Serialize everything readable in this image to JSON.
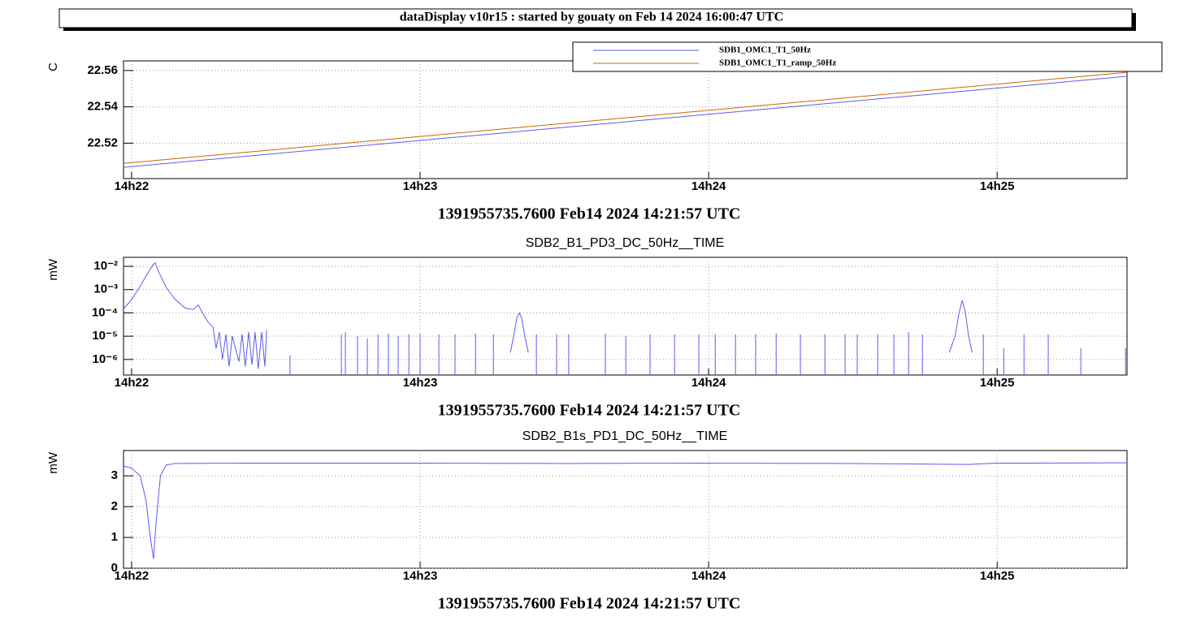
{
  "header": {
    "title": "dataDisplay v10r15 : started by gouaty on Feb 14 2024 16:00:47 UTC"
  },
  "chart_data": [
    {
      "type": "line",
      "ylabel": "C",
      "xlabel": "1391955735.7600 Feb14 2024 14:21:57 UTC",
      "x": [
        21.972,
        22.5,
        23,
        23.5,
        24,
        24.5,
        25,
        25.45
      ],
      "series": [
        {
          "name": "SDB1_OMC1_T1_50Hz",
          "color": "#5b5bf0",
          "values": [
            22.5067,
            22.5143,
            22.5215,
            22.5287,
            22.5359,
            22.5431,
            22.5503,
            22.5568
          ]
        },
        {
          "name": "SDB1_OMC1_T1_ramp_50Hz",
          "color": "#cc6600",
          "values": [
            22.5089,
            22.5165,
            22.5237,
            22.5309,
            22.5381,
            22.5453,
            22.5525,
            22.559
          ]
        }
      ],
      "xlim": [
        21.972,
        25.45
      ],
      "ylim": [
        22.5005,
        22.5653
      ],
      "xticks": [
        {
          "value": 22,
          "label": "14h22"
        },
        {
          "value": 23,
          "label": "14h23"
        },
        {
          "value": 24,
          "label": "14h24"
        },
        {
          "value": 25,
          "label": "14h25"
        }
      ],
      "yticks": [
        22.52,
        22.54,
        22.56
      ],
      "grid": true,
      "legend": "top-right"
    },
    {
      "type": "line",
      "title": "SDB2_B1_PD3_DC_50Hz__TIME",
      "ylabel": "mW",
      "xlabel": "1391955735.7600 Feb14 2024 14:21:57 UTC",
      "x": [
        21.972,
        21.994,
        22.023,
        22.051,
        22.073,
        22.082,
        22.096,
        22.121,
        22.149,
        22.186,
        22.214,
        22.231,
        22.248,
        22.265,
        22.282,
        22.293,
        22.304,
        22.315,
        22.327,
        22.338,
        22.349,
        22.372,
        22.383,
        22.394,
        22.406,
        22.417,
        22.428,
        22.439,
        22.451,
        22.462,
        22.468,
        null,
        22.549,
        22.549,
        null,
        22.727,
        22.727,
        null,
        22.741,
        22.741,
        null,
        22.783,
        22.783,
        null,
        22.817,
        22.817,
        null,
        22.854,
        22.854,
        null,
        22.89,
        22.89,
        null,
        22.924,
        22.924,
        null,
        22.961,
        22.961,
        null,
        23.0,
        23.0,
        null,
        23.065,
        23.065,
        null,
        23.121,
        23.121,
        null,
        23.192,
        23.192,
        null,
        23.254,
        23.254,
        null,
        23.313,
        23.324,
        23.335,
        23.344,
        23.352,
        23.363,
        23.375,
        null,
        23.403,
        23.403,
        null,
        23.473,
        23.473,
        null,
        23.515,
        23.515,
        null,
        23.642,
        23.642,
        null,
        23.713,
        23.713,
        null,
        23.797,
        23.797,
        null,
        23.882,
        23.882,
        null,
        23.966,
        23.966,
        null,
        24.023,
        24.023,
        null,
        24.093,
        24.093,
        null,
        24.163,
        24.163,
        null,
        24.234,
        24.234,
        null,
        24.318,
        24.318,
        null,
        24.403,
        24.403,
        null,
        24.473,
        24.473,
        null,
        24.515,
        24.515,
        null,
        24.586,
        24.586,
        null,
        24.642,
        24.642,
        null,
        24.693,
        24.693,
        null,
        24.741,
        24.741,
        null,
        24.834,
        24.854,
        24.868,
        24.879,
        24.89,
        24.901,
        24.913,
        null,
        24.952,
        24.952,
        null,
        25.023,
        25.023,
        null,
        25.093,
        25.093,
        null,
        25.177,
        25.177,
        null,
        25.29,
        25.29,
        null,
        25.445,
        25.445
      ],
      "series": [
        {
          "name": "SDB2_B1_PD3_DC_50Hz__TIME",
          "color": "#5b5bf0",
          "values": [
            0.00015,
            0.0003,
            0.001,
            0.004,
            0.011,
            0.014,
            0.005,
            0.0012,
            0.0004,
            0.00016,
            0.00014,
            0.00022,
            9e-05,
            4e-05,
            2.5e-05,
            3e-06,
            1.5e-05,
            1e-06,
            1.2e-05,
            5e-07,
            1e-05,
            8e-07,
            1.2e-05,
            5e-07,
            1.5e-05,
            6e-07,
            1.5e-05,
            4e-07,
            1.5e-05,
            5e-07,
            1.8e-05,
            null,
            2e-07,
            1.5e-06,
            null,
            2e-07,
            1.2e-05,
            null,
            2e-07,
            1.5e-05,
            null,
            2e-07,
            1e-05,
            null,
            2e-07,
            8e-06,
            null,
            2e-07,
            1.2e-05,
            null,
            2e-07,
            1.3e-05,
            null,
            2e-07,
            1e-05,
            null,
            2e-07,
            1.2e-05,
            null,
            2e-07,
            1.3e-05,
            null,
            2e-07,
            1.2e-05,
            null,
            2e-07,
            1.2e-05,
            null,
            2e-07,
            1.3e-05,
            null,
            2e-07,
            1.2e-05,
            null,
            2e-06,
            1e-05,
            6e-05,
            0.0001,
            6e-05,
            1e-05,
            2e-06,
            null,
            2e-07,
            1.2e-05,
            null,
            2e-07,
            1.2e-05,
            null,
            2e-07,
            1.2e-05,
            null,
            2e-07,
            1.3e-05,
            null,
            2e-07,
            1e-05,
            null,
            2e-07,
            1.2e-05,
            null,
            2e-07,
            1.2e-05,
            null,
            2e-07,
            1.2e-05,
            null,
            2e-07,
            1.2e-05,
            null,
            2e-07,
            1.2e-05,
            null,
            2e-07,
            1.2e-05,
            null,
            2e-07,
            1.3e-05,
            null,
            2e-07,
            1.2e-05,
            null,
            2e-07,
            1.2e-05,
            null,
            2e-07,
            1.2e-05,
            null,
            2e-07,
            1.2e-05,
            null,
            2e-07,
            1.2e-05,
            null,
            2e-07,
            1.2e-05,
            null,
            2e-07,
            1.5e-05,
            null,
            2e-07,
            1.2e-05,
            null,
            2e-06,
            1e-05,
            0.0001,
            0.00035,
            0.0001,
            1e-05,
            2e-06,
            null,
            2e-07,
            1.2e-05,
            null,
            2e-07,
            3e-06,
            null,
            2e-07,
            1.2e-05,
            null,
            2e-07,
            1.2e-05,
            null,
            2e-07,
            3e-06,
            null,
            2e-07,
            3e-06
          ]
        }
      ],
      "xlim": [
        21.972,
        25.45
      ],
      "ylim": [
        2.15e-07,
        0.0243
      ],
      "log_y": true,
      "xticks": [
        {
          "value": 22,
          "label": "14h22"
        },
        {
          "value": 23,
          "label": "14h23"
        },
        {
          "value": 24,
          "label": "14h24"
        },
        {
          "value": 25,
          "label": "14h25"
        }
      ],
      "yticks": [
        {
          "value": 0.01,
          "label": "10⁻²"
        },
        {
          "value": 0.001,
          "label": "10⁻³"
        },
        {
          "value": 0.0001,
          "label": "10⁻⁴"
        },
        {
          "value": 1e-05,
          "label": "10⁻⁵"
        },
        {
          "value": 1e-06,
          "label": "10⁻⁶"
        }
      ],
      "grid": true
    },
    {
      "type": "line",
      "title": "SDB2_B1s_PD1_DC_50Hz__TIME",
      "ylabel": "mW",
      "xlabel": "1391955735.7600 Feb14 2024 14:21:57 UTC",
      "x": [
        21.972,
        22.0,
        22.03,
        22.05,
        22.065,
        22.076,
        22.085,
        22.1,
        22.12,
        22.15,
        22.4,
        23.0,
        23.5,
        24.0,
        24.5,
        24.9,
        25.0,
        25.45
      ],
      "series": [
        {
          "name": "SDB2_B1s_PD1_DC_50Hz__TIME",
          "color": "#5b5bf0",
          "values": [
            3.32,
            3.25,
            3.0,
            2.2,
            1.0,
            0.3,
            1.5,
            3.0,
            3.35,
            3.4,
            3.41,
            3.41,
            3.4,
            3.41,
            3.4,
            3.37,
            3.41,
            3.42
          ]
        }
      ],
      "xlim": [
        21.972,
        25.45
      ],
      "ylim": [
        0,
        3.82
      ],
      "xticks": [
        {
          "value": 22,
          "label": "14h22"
        },
        {
          "value": 23,
          "label": "14h23"
        },
        {
          "value": 24,
          "label": "14h24"
        },
        {
          "value": 25,
          "label": "14h25"
        }
      ],
      "yticks": [
        0,
        1,
        2,
        3
      ],
      "grid": true
    }
  ]
}
